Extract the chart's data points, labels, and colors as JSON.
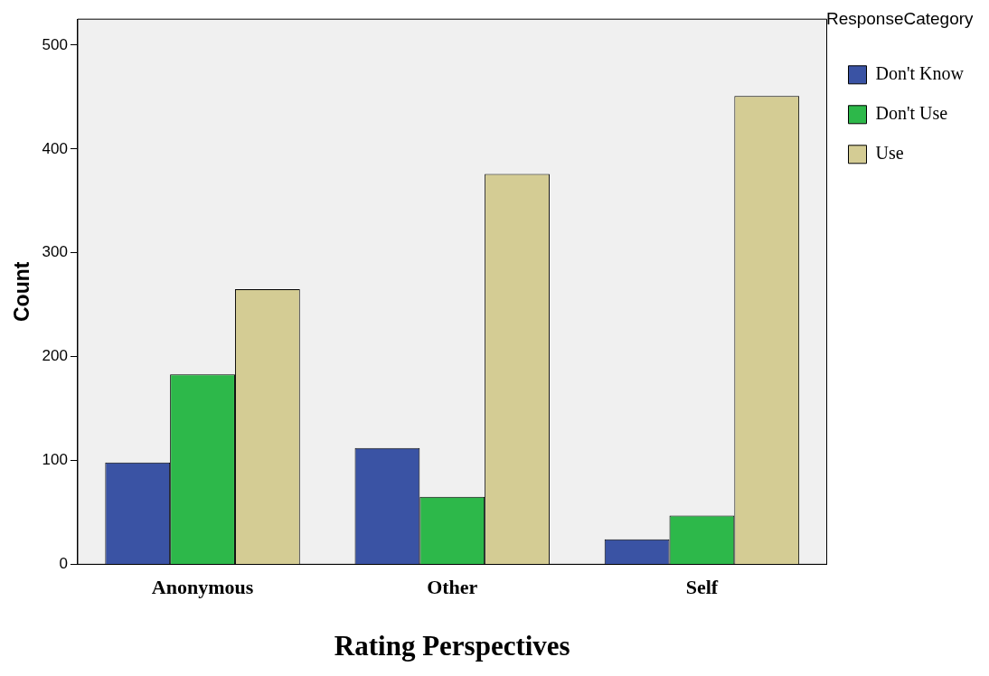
{
  "chart_data": {
    "type": "bar",
    "xlabel": "Rating Perspectives",
    "ylabel": "Count",
    "legend_title": "ResponseCategory",
    "categories": [
      "Anonymous",
      "Other",
      "Self"
    ],
    "series": [
      {
        "name": "Don't Know",
        "color": "#3a53a4",
        "values": [
          98,
          112,
          24
        ]
      },
      {
        "name": "Don't Use",
        "color": "#2db84a",
        "values": [
          183,
          65,
          47
        ]
      },
      {
        "name": "Use",
        "color": "#d4cc94",
        "values": [
          265,
          376,
          451
        ]
      }
    ],
    "ylim": [
      0,
      525
    ],
    "yticks": [
      0,
      100,
      200,
      300,
      400,
      500
    ],
    "grid": false,
    "legend": "top right"
  }
}
